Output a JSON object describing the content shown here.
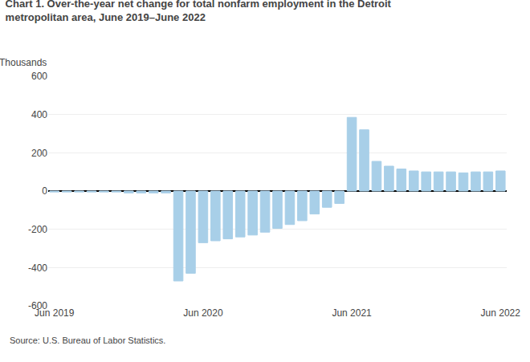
{
  "chart_data": {
    "type": "bar",
    "title": "Chart 1. Over-the-year net change for total nonfarm employment in the Detroit\nmetropolitan area, June 2019–June 2022",
    "ylabel": "Thousands",
    "source": "Source: U.S. Bureau of Labor Statistics.",
    "categories": [
      "Jun 2019",
      null,
      null,
      null,
      null,
      null,
      null,
      null,
      null,
      null,
      null,
      null,
      "Jun 2020",
      null,
      null,
      null,
      null,
      null,
      null,
      null,
      null,
      null,
      null,
      null,
      "Jun 2021",
      null,
      null,
      null,
      null,
      null,
      null,
      null,
      null,
      null,
      null,
      null,
      "Jun 2022"
    ],
    "values": [
      -5,
      -5,
      -5,
      -5,
      -5,
      -5,
      -10,
      -10,
      -10,
      -10,
      -470,
      -430,
      -270,
      -260,
      -250,
      -240,
      -230,
      -215,
      -195,
      -175,
      -155,
      -120,
      -85,
      -65,
      385,
      320,
      155,
      130,
      115,
      105,
      100,
      100,
      100,
      95,
      100,
      100,
      105
    ],
    "color": "#a8cfe8",
    "ylim": [
      -600,
      600
    ],
    "yticks": [
      -600,
      -400,
      -200,
      0,
      200,
      400,
      600
    ],
    "grid": true
  }
}
